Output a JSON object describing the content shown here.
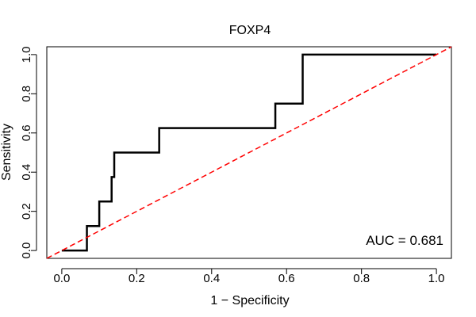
{
  "chart_data": {
    "type": "line",
    "title": "FOXP4",
    "xlabel": "1 − Specificity",
    "ylabel": "Sensitivity",
    "xlim": [
      -0.04,
      1.04
    ],
    "ylim": [
      -0.04,
      1.04
    ],
    "xticks": [
      0.0,
      0.2,
      0.4,
      0.6,
      0.8,
      1.0
    ],
    "yticks": [
      0.0,
      0.2,
      0.4,
      0.6,
      0.8,
      1.0
    ],
    "xtick_labels": [
      "0.0",
      "0.2",
      "0.4",
      "0.6",
      "0.8",
      "1.0"
    ],
    "ytick_labels": [
      "0.0",
      "0.2",
      "0.4",
      "0.6",
      "0.8",
      "1.0"
    ],
    "grid": false,
    "series": [
      {
        "name": "ROC curve",
        "color": "#000000",
        "style": "solid",
        "x": [
          0.0,
          0.067,
          0.067,
          0.1,
          0.1,
          0.133,
          0.133,
          0.14,
          0.14,
          0.26,
          0.26,
          0.57,
          0.57,
          0.643,
          0.643,
          1.0
        ],
        "y": [
          0.0,
          0.0,
          0.125,
          0.125,
          0.25,
          0.25,
          0.375,
          0.375,
          0.5,
          0.5,
          0.625,
          0.625,
          0.75,
          0.75,
          1.0,
          1.0
        ]
      },
      {
        "name": "Reference line",
        "color": "#ff0000",
        "style": "dashed",
        "x": [
          -0.04,
          1.04
        ],
        "y": [
          -0.04,
          1.04
        ]
      }
    ],
    "annotation": {
      "text": "AUC = 0.681",
      "position": "bottom-right"
    }
  }
}
